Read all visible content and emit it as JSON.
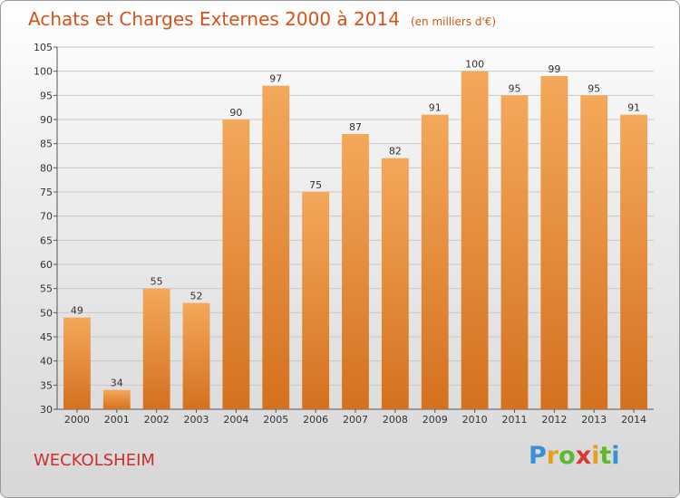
{
  "header": {
    "title": "Achats et Charges Externes 2000 à 2014",
    "unit": "(en milliers d'€)"
  },
  "commune": "WECKOLSHEIM",
  "logo": {
    "letters": [
      "P",
      "r",
      "o",
      "x",
      "i",
      "t",
      "i"
    ],
    "colors": [
      "#3a8fd8",
      "#e8a01a",
      "#5cb82e",
      "#d73a2e",
      "#e8a01a",
      "#5cb82e",
      "#3a8fd8"
    ]
  },
  "colors": {
    "bar_light": "#f4a85a",
    "bar_dark": "#d4711f",
    "title": "#d4531a",
    "commune": "#cc2e2e"
  },
  "chart_data": {
    "type": "bar",
    "categories": [
      "2000",
      "2001",
      "2002",
      "2003",
      "2004",
      "2005",
      "2006",
      "2007",
      "2008",
      "2009",
      "2010",
      "2011",
      "2012",
      "2013",
      "2014"
    ],
    "values": [
      49,
      34,
      55,
      52,
      90,
      97,
      75,
      87,
      82,
      91,
      100,
      95,
      99,
      95,
      91
    ],
    "title": "Achats et Charges Externes 2000 à 2014",
    "xlabel": "",
    "ylabel": "",
    "ylim": [
      30,
      105
    ],
    "yticks": [
      30,
      35,
      40,
      45,
      50,
      55,
      60,
      65,
      70,
      75,
      80,
      85,
      90,
      95,
      100,
      105
    ],
    "grid": true,
    "data_labels": true
  }
}
